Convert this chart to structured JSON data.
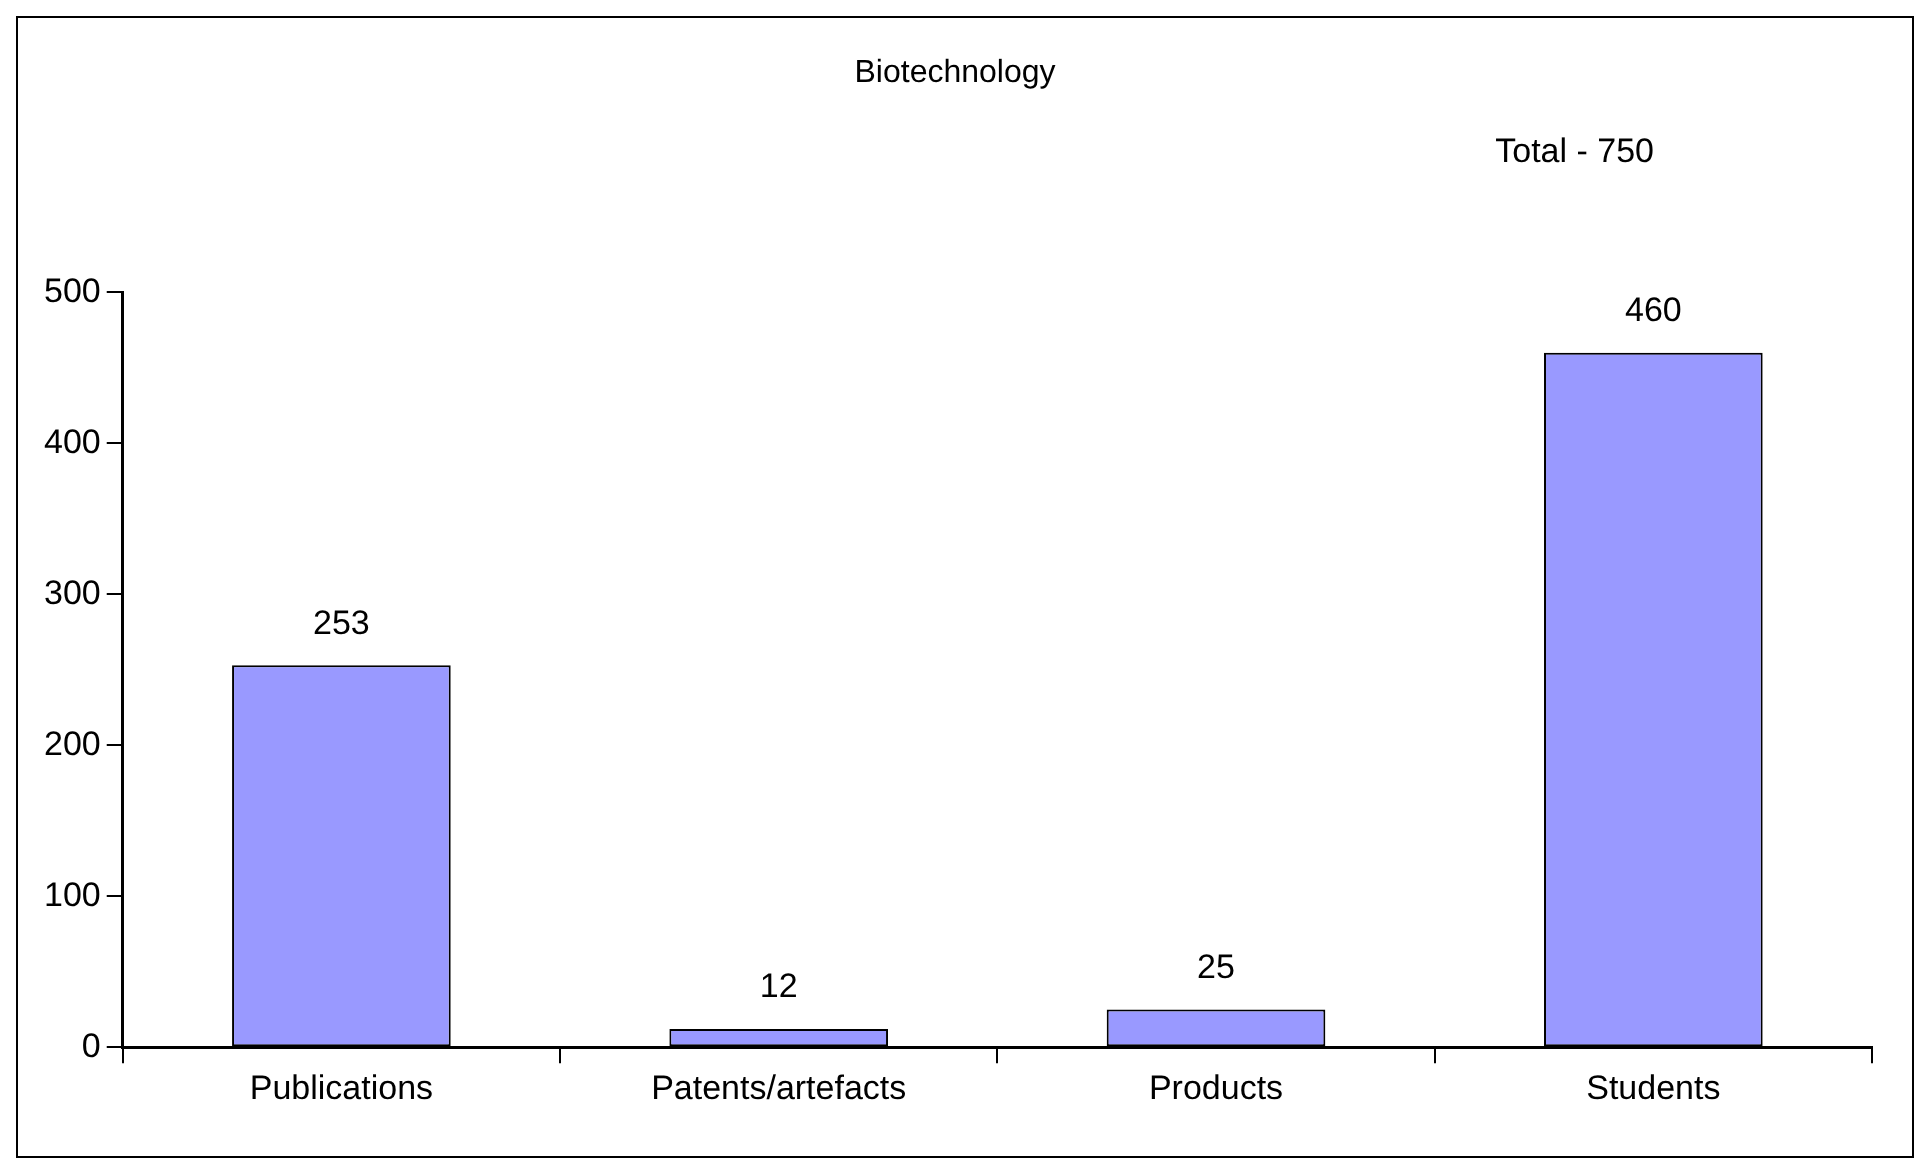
{
  "chart_data": {
    "type": "bar",
    "title": "Biotechnology",
    "annotations": [
      "Total - 750"
    ],
    "categories": [
      "Publications",
      "Patents/artefacts",
      "Products",
      "Students"
    ],
    "values": [
      253,
      12,
      25,
      460
    ],
    "color": "#9999ff",
    "ylim": [
      0,
      500
    ],
    "yticks": [
      0,
      100,
      200,
      300,
      400,
      500
    ],
    "grid": false,
    "legend": false,
    "data_labels": true
  }
}
